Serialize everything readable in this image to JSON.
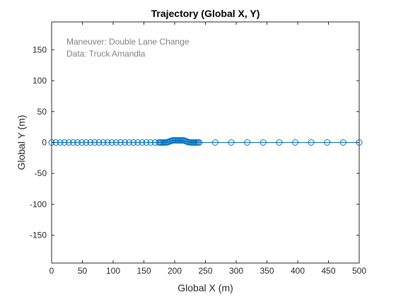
{
  "chart_data": {
    "type": "line",
    "title": "Trajectory (Global X, Y)",
    "xlabel": "Global X (m)",
    "ylabel": "Global Y (m)",
    "xlim": [
      0,
      500
    ],
    "ylim": [
      -195,
      195
    ],
    "xticks": [
      0,
      50,
      100,
      150,
      200,
      250,
      300,
      350,
      400,
      450,
      500
    ],
    "yticks": [
      -150,
      -100,
      -50,
      0,
      50,
      100,
      150
    ],
    "grid": false,
    "annotations": [
      "Maneuver: Double Lane Change",
      "Data: Truck Amandla"
    ],
    "series": [
      {
        "color": "#0072BD",
        "marker": "circle",
        "x": [
          0,
          7,
          14,
          21,
          28,
          35,
          42,
          49,
          56,
          63,
          70,
          77,
          84,
          91,
          98,
          105,
          112,
          119,
          126,
          133,
          140,
          147,
          154,
          161,
          168,
          174,
          176,
          178,
          180,
          182,
          184,
          186,
          188,
          190,
          192,
          194,
          196,
          198,
          200,
          202,
          204,
          206,
          208,
          210,
          212,
          214,
          216,
          218,
          220,
          222,
          224,
          226,
          228,
          230,
          232,
          234,
          236,
          238,
          240,
          266,
          292,
          318,
          344,
          370,
          396,
          422,
          448,
          474,
          500
        ],
        "y": [
          0,
          0,
          0,
          0,
          0,
          0,
          0,
          0,
          0,
          0,
          0,
          0,
          0,
          0,
          0,
          0,
          0,
          0,
          0,
          0,
          0,
          0,
          0,
          0,
          0,
          0,
          0,
          0,
          0,
          0,
          0,
          0,
          0.5,
          1,
          1.8,
          2.6,
          3.2,
          3.5,
          3.5,
          3.5,
          3.5,
          3.5,
          3.5,
          3.5,
          3.5,
          3.4,
          3,
          2.2,
          1.4,
          0.7,
          0.3,
          0.1,
          0,
          0,
          0,
          0,
          0,
          0,
          0,
          0,
          0,
          0,
          0,
          0,
          0,
          0,
          0,
          0,
          0
        ]
      }
    ]
  }
}
